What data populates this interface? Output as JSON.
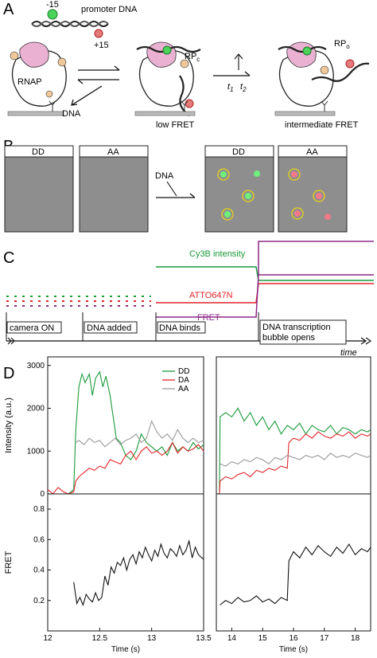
{
  "panels": {
    "a": "A",
    "b": "B",
    "c": "C",
    "d": "D"
  },
  "panelA": {
    "minus15": "-15",
    "plus15": "+15",
    "promoter": "promoter DNA",
    "rnap": "RNAP",
    "dna": "DNA",
    "rpc": "RP",
    "rpc_sub": "c",
    "rpo": "RP",
    "rpo_sub": "o",
    "t1": "t",
    "t1_sub": "1",
    "t2": "t",
    "t2_sub": "2",
    "low_fret": "low FRET",
    "int_fret": "intermediate FRET"
  },
  "panelB": {
    "dd": "DD",
    "aa": "AA",
    "dna": "DNA"
  },
  "panelC": {
    "cy3b": "Cy3B intensity",
    "atto": "ATTO647N",
    "fret": "FRET",
    "camera_on": "camera ON",
    "dna_added": "DNA added",
    "dna_binds": "DNA binds",
    "bubble_line1": "DNA transcription",
    "bubble_line2": "bubble opens",
    "time": "time"
  },
  "colors": {
    "dd": "#1a9a3a",
    "da": "#e0262b",
    "aa": "#999999",
    "fret": "#8b2a86",
    "box_fill": "#8e8e8e",
    "rnap_pink": "#eab1d3",
    "spot_yellow": "#e8d21b"
  },
  "chart_data": [
    {
      "type": "line",
      "id": "intensity-left",
      "xlim": [
        12.0,
        13.5
      ],
      "ylim": [
        0,
        3200
      ],
      "ylabel": "Intensity (a.u.)",
      "yticks": [
        0,
        1000,
        2000,
        3000
      ],
      "legend": [
        "DD",
        "DA",
        "AA"
      ],
      "series": [
        {
          "name": "DD",
          "x": [
            12.0,
            12.05,
            12.1,
            12.15,
            12.2,
            12.25,
            12.27,
            12.3,
            12.33,
            12.36,
            12.4,
            12.43,
            12.46,
            12.5,
            12.53,
            12.56,
            12.6,
            12.63,
            12.66,
            12.7,
            12.75,
            12.8,
            12.85,
            12.9,
            12.95,
            13.0,
            13.05,
            13.1,
            13.15,
            13.2,
            13.25,
            13.3,
            13.35,
            13.4,
            13.45,
            13.5
          ],
          "y": [
            0,
            0,
            0,
            0,
            0,
            100,
            1500,
            2500,
            2800,
            2600,
            2800,
            2300,
            2700,
            2850,
            2500,
            2750,
            2300,
            1800,
            1300,
            1200,
            900,
            800,
            1000,
            1400,
            1200,
            1100,
            1000,
            1100,
            900,
            1200,
            1000,
            1100,
            1000,
            1200,
            1050,
            1150
          ]
        },
        {
          "name": "DA",
          "x": [
            12.0,
            12.05,
            12.1,
            12.15,
            12.2,
            12.25,
            12.27,
            12.3,
            12.35,
            12.4,
            12.45,
            12.5,
            12.55,
            12.6,
            12.65,
            12.7,
            12.75,
            12.8,
            12.85,
            12.9,
            12.95,
            13.0,
            13.05,
            13.1,
            13.15,
            13.2,
            13.25,
            13.3,
            13.35,
            13.4,
            13.45,
            13.5
          ],
          "y": [
            100,
            0,
            150,
            50,
            0,
            50,
            300,
            400,
            500,
            600,
            550,
            650,
            600,
            800,
            750,
            700,
            900,
            1000,
            800,
            1000,
            1100,
            950,
            1000,
            900,
            1000,
            1200,
            950,
            1100,
            1000,
            1050,
            1150,
            1000
          ]
        },
        {
          "name": "AA",
          "x": [
            12.27,
            12.3,
            12.35,
            12.4,
            12.45,
            12.5,
            12.55,
            12.6,
            12.65,
            12.7,
            12.75,
            12.8,
            12.85,
            12.9,
            12.95,
            13.0,
            13.05,
            13.1,
            13.15,
            13.2,
            13.25,
            13.3,
            13.35,
            13.4,
            13.45,
            13.5
          ],
          "y": [
            1200,
            1250,
            1150,
            1300,
            1200,
            1250,
            1100,
            1200,
            1300,
            1150,
            1250,
            1300,
            1400,
            1200,
            1300,
            1700,
            1450,
            1300,
            1400,
            1250,
            1500,
            1300,
            1200,
            1300,
            1200,
            1250
          ]
        }
      ]
    },
    {
      "type": "line",
      "id": "intensity-right",
      "xlim": [
        13.5,
        18.5
      ],
      "ylim": [
        0,
        3200
      ],
      "series": [
        {
          "name": "DD",
          "x": [
            13.5,
            13.6,
            13.62,
            13.8,
            14.0,
            14.2,
            14.4,
            14.6,
            14.8,
            15.0,
            15.2,
            15.4,
            15.6,
            15.8,
            16.0,
            16.2,
            16.4,
            16.6,
            16.8,
            17.0,
            17.2,
            17.4,
            17.6,
            17.8,
            18.0,
            18.2,
            18.4,
            18.5
          ],
          "y": [
            0,
            0,
            1800,
            1900,
            1800,
            2000,
            1700,
            1900,
            1600,
            1800,
            1500,
            1700,
            1400,
            1600,
            1500,
            1650,
            1400,
            1600,
            1500,
            1450,
            1600,
            1400,
            1550,
            1500,
            1400,
            1500,
            1450,
            1500
          ]
        },
        {
          "name": "DA",
          "x": [
            13.5,
            13.6,
            13.62,
            13.8,
            14.0,
            14.2,
            14.4,
            14.6,
            14.8,
            15.0,
            15.2,
            15.4,
            15.6,
            15.8,
            15.85,
            16.0,
            16.2,
            16.4,
            16.6,
            16.8,
            17.0,
            17.2,
            17.4,
            17.6,
            17.8,
            18.0,
            18.2,
            18.4,
            18.5
          ],
          "y": [
            0,
            0,
            300,
            400,
            350,
            450,
            500,
            400,
            550,
            500,
            600,
            550,
            650,
            600,
            1200,
            1300,
            1250,
            1400,
            1300,
            1450,
            1350,
            1300,
            1400,
            1350,
            1450,
            1300,
            1400,
            1350,
            1400
          ]
        },
        {
          "name": "AA",
          "x": [
            13.62,
            13.8,
            14.0,
            14.2,
            14.4,
            14.6,
            14.8,
            15.0,
            15.2,
            15.4,
            15.6,
            15.8,
            16.0,
            16.2,
            16.4,
            16.6,
            16.8,
            17.0,
            17.2,
            17.4,
            17.6,
            17.8,
            18.0,
            18.2,
            18.4,
            18.5
          ],
          "y": [
            700,
            650,
            750,
            700,
            800,
            750,
            850,
            800,
            700,
            850,
            800,
            900,
            850,
            800,
            900,
            850,
            900,
            800,
            950,
            850,
            900,
            850,
            950,
            900,
            850,
            900
          ]
        }
      ]
    },
    {
      "type": "line",
      "id": "fret-left",
      "xlim": [
        12.0,
        13.5
      ],
      "ylim": [
        0,
        0.9
      ],
      "xlabel": "Time (s)",
      "ylabel": "FRET",
      "xticks": [
        12.0,
        12.5,
        13.0,
        13.5
      ],
      "yticks": [
        0.2,
        0.4,
        0.6,
        0.8
      ],
      "series": [
        {
          "name": "FRET",
          "x": [
            12.25,
            12.28,
            12.31,
            12.34,
            12.37,
            12.4,
            12.43,
            12.46,
            12.49,
            12.52,
            12.55,
            12.58,
            12.61,
            12.64,
            12.67,
            12.7,
            12.73,
            12.76,
            12.79,
            12.82,
            12.85,
            12.88,
            12.91,
            12.94,
            12.97,
            13.0,
            13.03,
            13.06,
            13.09,
            13.12,
            13.15,
            13.18,
            13.21,
            13.24,
            13.27,
            13.3,
            13.33,
            13.36,
            13.39,
            13.42,
            13.45,
            13.5
          ],
          "y": [
            0.32,
            0.18,
            0.22,
            0.17,
            0.24,
            0.21,
            0.19,
            0.25,
            0.2,
            0.22,
            0.36,
            0.3,
            0.42,
            0.38,
            0.45,
            0.43,
            0.48,
            0.4,
            0.47,
            0.5,
            0.44,
            0.52,
            0.48,
            0.55,
            0.5,
            0.46,
            0.53,
            0.49,
            0.57,
            0.51,
            0.48,
            0.54,
            0.52,
            0.49,
            0.56,
            0.5,
            0.53,
            0.59,
            0.48,
            0.55,
            0.5,
            0.47
          ]
        }
      ]
    },
    {
      "type": "line",
      "id": "fret-right",
      "xlim": [
        13.5,
        18.5
      ],
      "ylim": [
        0,
        0.9
      ],
      "xlabel": "Time (s)",
      "xticks": [
        14,
        15,
        16,
        17,
        18
      ],
      "series": [
        {
          "name": "FRET",
          "x": [
            13.62,
            13.8,
            14.0,
            14.2,
            14.4,
            14.6,
            14.8,
            15.0,
            15.2,
            15.4,
            15.6,
            15.8,
            15.85,
            16.0,
            16.2,
            16.4,
            16.6,
            16.8,
            17.0,
            17.2,
            17.4,
            17.6,
            17.8,
            18.0,
            18.2,
            18.4,
            18.5
          ],
          "y": [
            0.17,
            0.2,
            0.18,
            0.22,
            0.19,
            0.2,
            0.23,
            0.19,
            0.21,
            0.18,
            0.22,
            0.2,
            0.46,
            0.52,
            0.48,
            0.55,
            0.5,
            0.56,
            0.52,
            0.49,
            0.55,
            0.51,
            0.57,
            0.5,
            0.54,
            0.52,
            0.55
          ]
        }
      ]
    }
  ]
}
